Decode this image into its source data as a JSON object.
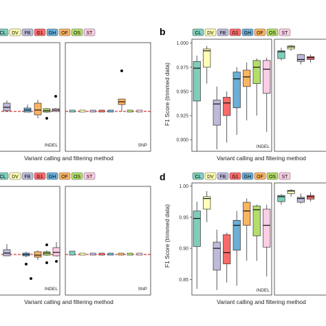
{
  "colors": {
    "CL": "#7fcdbb",
    "DV": "#ffffb3",
    "FB": "#bebada",
    "G1": "#fb6a6a",
    "GH": "#6baed6",
    "OF": "#fdb462",
    "OS": "#b3de69",
    "ST": "#fccde5",
    "median": "#111111",
    "refline": "#cc0000",
    "strip": "#e6e6e6",
    "frame": "#333333"
  },
  "labels": {
    "panel_b": "b",
    "panel_d": "d",
    "x_title": "Variant calling and filtering method",
    "y_title": "F1 Score (trimmed data)",
    "indel": "INDEL",
    "snp": "SNP"
  },
  "methods": [
    "CL",
    "DV",
    "FB",
    "G1",
    "GH",
    "OF",
    "OS",
    "ST"
  ],
  "chart_data": [
    {
      "type": "box",
      "panel": "a-top (partially visible)",
      "facets": [
        "INDEL",
        "SNP"
      ],
      "xlabel": "Variant calling and filtering method",
      "categories": [
        "CL",
        "DV",
        "FB",
        "G1",
        "GH",
        "OF",
        "OS",
        "ST"
      ],
      "series": [
        {
          "name": "INDEL",
          "visible_categories": [
            "FB",
            "G1",
            "GH",
            "OF",
            "OS",
            "ST"
          ],
          "relative_y": [
            0.5,
            0.45,
            0.52,
            0.6,
            0.48,
            0.55
          ],
          "outliers": [
            {
              "category": "OF",
              "relative_y": 0.35
            },
            {
              "category": "OS",
              "relative_y": 0.62
            },
            {
              "category": "ST",
              "relative_y": 0.75
            }
          ]
        },
        {
          "name": "SNP",
          "visible_categories": [
            "CL",
            "DV",
            "FB",
            "G1",
            "GH",
            "OF",
            "OS",
            "ST"
          ],
          "relative_y": [
            0.55,
            0.5,
            0.5,
            0.5,
            0.5,
            0.9,
            0.5,
            0.5
          ],
          "outliers": [
            {
              "category": "OF",
              "relative_y": 2.9
            }
          ]
        }
      ]
    },
    {
      "type": "box",
      "panel": "b",
      "facets": [
        "INDEL",
        "SNP"
      ],
      "xlabel": "Variant calling and filtering method",
      "ylabel": "F1 Score (trimmed data)",
      "ylim": [
        0.888,
        1.004
      ],
      "yticks": [
        0.9,
        0.925,
        0.95,
        0.975,
        1.0
      ],
      "ytick_labels": [
        "0.900",
        "0.925",
        "0.950",
        "0.975",
        "1.000"
      ],
      "categories": [
        "CL",
        "DV",
        "FB",
        "G1",
        "GH",
        "OF",
        "OS",
        "ST"
      ],
      "series": [
        {
          "name": "INDEL",
          "boxes": [
            {
              "category": "CL",
              "min": 0.888,
              "q1": 0.94,
              "median": 0.974,
              "q3": 0.981,
              "max": 0.987
            },
            {
              "category": "DV",
              "min": 0.958,
              "q1": 0.975,
              "median": 0.992,
              "q3": 0.994,
              "max": 0.997
            },
            {
              "category": "FB",
              "min": 0.89,
              "q1": 0.915,
              "median": 0.937,
              "q3": 0.941,
              "max": 0.955
            },
            {
              "category": "G1",
              "min": 0.897,
              "q1": 0.925,
              "median": 0.938,
              "q3": 0.944,
              "max": 0.95
            },
            {
              "category": "GH",
              "min": 0.905,
              "q1": 0.933,
              "median": 0.963,
              "q3": 0.97,
              "max": 0.975
            },
            {
              "category": "OF",
              "min": 0.92,
              "q1": 0.955,
              "median": 0.965,
              "q3": 0.972,
              "max": 0.98
            },
            {
              "category": "OS",
              "min": 0.925,
              "q1": 0.958,
              "median": 0.975,
              "q3": 0.982,
              "max": 0.984
            },
            {
              "category": "ST",
              "min": 0.908,
              "q1": 0.948,
              "median": 0.973,
              "q3": 0.982,
              "max": 0.985
            }
          ]
        },
        {
          "name": "SNP",
          "boxes": [
            {
              "category": "CL",
              "min": 0.982,
              "q1": 0.984,
              "median": 0.991,
              "q3": 0.992,
              "max": 0.995
            },
            {
              "category": "DV",
              "min": 0.992,
              "q1": 0.994,
              "median": 0.996,
              "q3": 0.997,
              "max": 0.998
            },
            {
              "category": "FB",
              "min": 0.978,
              "q1": 0.981,
              "median": 0.983,
              "q3": 0.988,
              "max": 0.989
            },
            {
              "category": "G1",
              "min": 0.98,
              "q1": 0.983,
              "median": 0.985,
              "q3": 0.986,
              "max": 0.988
            }
          ]
        }
      ]
    },
    {
      "type": "box",
      "panel": "c (partially visible)",
      "facets": [
        "INDEL",
        "SNP"
      ],
      "xlabel": "Variant calling and filtering method",
      "categories": [
        "CL",
        "DV",
        "FB",
        "G1",
        "GH",
        "OF",
        "OS",
        "ST"
      ]
    },
    {
      "type": "box",
      "panel": "d",
      "facets": [
        "INDEL",
        "SNP"
      ],
      "xlabel": "Variant calling and filtering method",
      "ylabel": "F1 Score (trimmed data)",
      "ylim": [
        0.825,
        1.005
      ],
      "yticks": [
        0.85,
        0.9,
        0.95,
        1.0
      ],
      "ytick_labels": [
        "0.85",
        "0.90",
        "0.95",
        "1.00"
      ],
      "categories": [
        "CL",
        "DV",
        "FB",
        "G1",
        "GH",
        "OF",
        "OS",
        "ST"
      ],
      "series": [
        {
          "name": "INDEL",
          "boxes": [
            {
              "category": "CL",
              "min": 0.835,
              "q1": 0.903,
              "median": 0.948,
              "q3": 0.96,
              "max": 0.975
            },
            {
              "category": "DV",
              "min": 0.942,
              "q1": 0.963,
              "median": 0.98,
              "q3": 0.983,
              "max": 0.992
            },
            {
              "category": "FB",
              "min": 0.833,
              "q1": 0.865,
              "median": 0.9,
              "q3": 0.91,
              "max": 0.93
            },
            {
              "category": "G1",
              "min": 0.845,
              "q1": 0.875,
              "median": 0.893,
              "q3": 0.922,
              "max": 0.925
            },
            {
              "category": "GH",
              "min": 0.84,
              "q1": 0.897,
              "median": 0.937,
              "q3": 0.945,
              "max": 0.96
            },
            {
              "category": "OF",
              "min": 0.88,
              "q1": 0.937,
              "median": 0.96,
              "q3": 0.974,
              "max": 0.98
            },
            {
              "category": "OS",
              "min": 0.88,
              "q1": 0.92,
              "median": 0.962,
              "q3": 0.968,
              "max": 0.97
            },
            {
              "category": "ST",
              "min": 0.855,
              "q1": 0.902,
              "median": 0.937,
              "q3": 0.963,
              "max": 0.97
            }
          ]
        },
        {
          "name": "SNP",
          "boxes": [
            {
              "category": "CL",
              "min": 0.97,
              "q1": 0.975,
              "median": 0.983,
              "q3": 0.985,
              "max": 0.987
            },
            {
              "category": "DV",
              "min": 0.983,
              "q1": 0.988,
              "median": 0.992,
              "q3": 0.993,
              "max": 0.995
            },
            {
              "category": "FB",
              "min": 0.972,
              "q1": 0.974,
              "median": 0.98,
              "q3": 0.982,
              "max": 0.988
            },
            {
              "category": "G1",
              "min": 0.975,
              "q1": 0.979,
              "median": 0.983,
              "q3": 0.985,
              "max": 0.99
            }
          ]
        }
      ]
    }
  ]
}
